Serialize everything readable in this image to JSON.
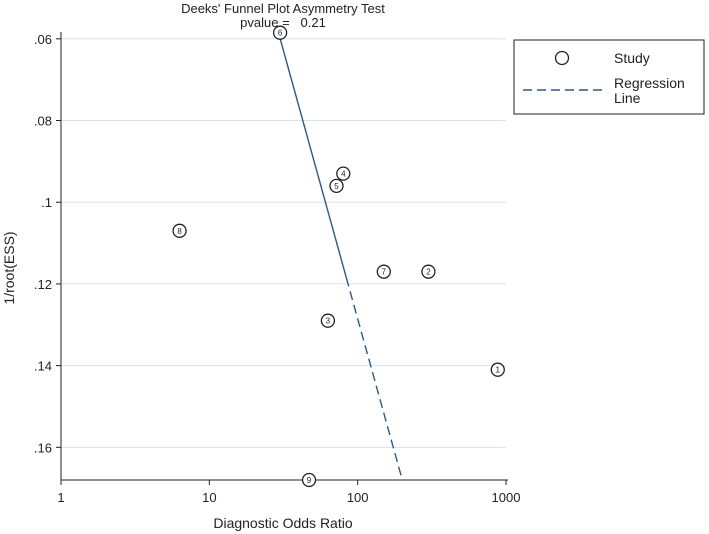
{
  "chart_data": {
    "type": "scatter",
    "title": "Deeks' Funnel Plot Asymmetry Test",
    "subtitle": "pvalue =   0.21",
    "xlabel": "Diagnostic Odds Ratio",
    "ylabel": "1/root(ESS)",
    "x_scale": "log",
    "xlim": [
      1,
      1000
    ],
    "ylim": [
      0.06,
      0.168
    ],
    "y_reversed": true,
    "x_ticks": [
      1,
      10,
      100,
      1000
    ],
    "x_tick_labels": [
      "1",
      "10",
      "100",
      "1000"
    ],
    "y_ticks": [
      0.06,
      0.08,
      0.1,
      0.12,
      0.14,
      0.16
    ],
    "y_tick_labels": [
      ".06",
      ".08",
      ".1",
      ".12",
      ".14",
      ".16"
    ],
    "grid": true,
    "legend_position": "top-right",
    "legend": [
      {
        "label": "Study",
        "marker": "circle"
      },
      {
        "label": "Regression Line",
        "line1": "Regression",
        "line2": "Line",
        "style": "dashed"
      }
    ],
    "points": [
      {
        "label": "1",
        "x": 880,
        "y": 0.141
      },
      {
        "label": "2",
        "x": 300,
        "y": 0.117
      },
      {
        "label": "3",
        "x": 63,
        "y": 0.129
      },
      {
        "label": "4",
        "x": 80,
        "y": 0.093
      },
      {
        "label": "5",
        "x": 72,
        "y": 0.096
      },
      {
        "label": "6",
        "x": 30,
        "y": 0.0585
      },
      {
        "label": "7",
        "x": 150,
        "y": 0.117
      },
      {
        "label": "8",
        "x": 6.3,
        "y": 0.107
      },
      {
        "label": "9",
        "x": 47,
        "y": 0.168
      }
    ],
    "regression_line": {
      "x": [
        29,
        200
      ],
      "y": [
        0.058,
        0.168
      ]
    },
    "colors": {
      "regression": "#2a5a8c",
      "points": "#222222",
      "grid": "#d8e4ea"
    }
  }
}
